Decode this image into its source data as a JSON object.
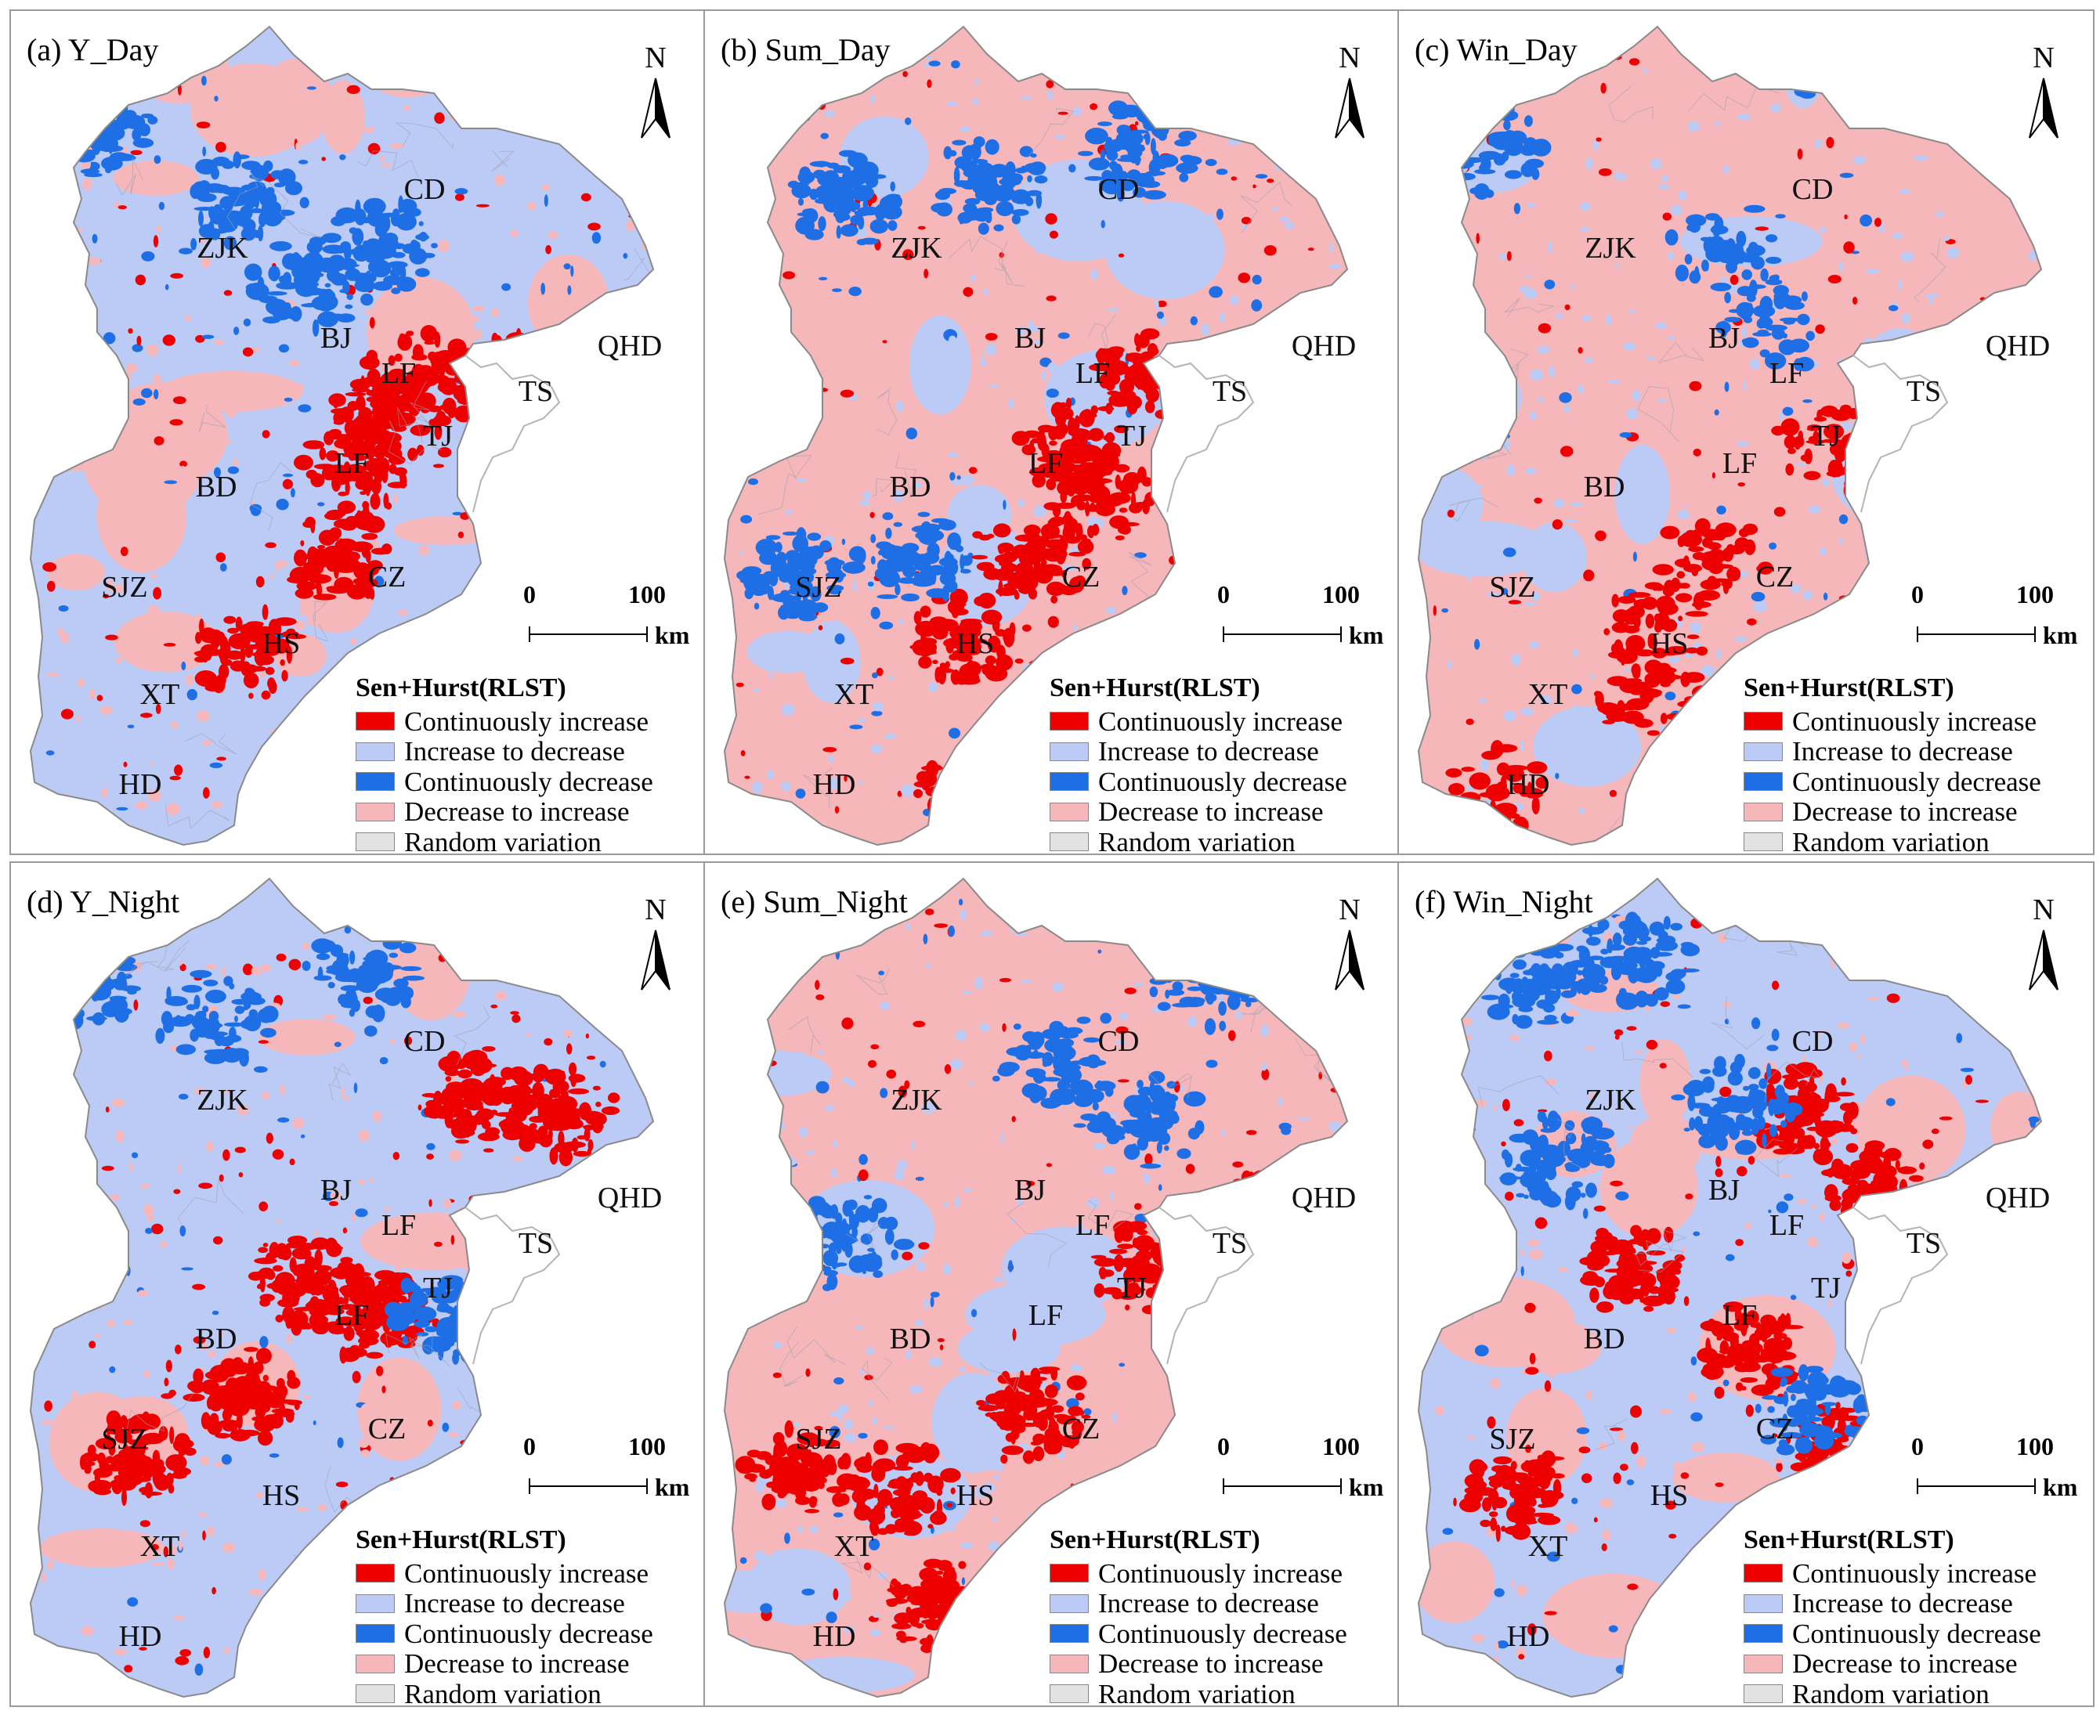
{
  "figure": {
    "colors": {
      "continuously_increase": "#ee0000",
      "increase_to_decrease": "#bccbf5",
      "continuously_decrease": "#1e6fe6",
      "decrease_to_increase": "#f6b7bb",
      "random_variation": "#e2e2e2",
      "coast": "#b4b4b4"
    },
    "north_label": "N",
    "scale_bar": {
      "zero": "0",
      "max": "100",
      "unit": "km"
    },
    "legend": {
      "title": "Sen+Hurst(RLST)",
      "items": [
        {
          "label": "Continuously increase",
          "color": "#ee0000"
        },
        {
          "label": "Increase to decrease",
          "color": "#bccbf5"
        },
        {
          "label": "Continuously decrease",
          "color": "#1e6fe6"
        },
        {
          "label": "Decrease to increase",
          "color": "#f6b7bb"
        },
        {
          "label": "Random variation",
          "color": "#e2e2e2"
        }
      ]
    },
    "panels": [
      {
        "title": "(a) Y_Day",
        "base": "increase_to_decrease",
        "mix": {
          "red": 0.55,
          "blue": 0.55,
          "pink": 0.65
        }
      },
      {
        "title": "(b) Sum_Day",
        "base": "decrease_to_increase",
        "mix": {
          "red": 0.55,
          "blue": 0.6,
          "pink": 0.35
        }
      },
      {
        "title": "(c) Win_Day",
        "base": "decrease_to_increase",
        "mix": {
          "red": 0.35,
          "blue": 0.35,
          "pink": 0.3
        }
      },
      {
        "title": "(d) Y_Night",
        "base": "increase_to_decrease",
        "mix": {
          "red": 0.7,
          "blue": 0.45,
          "pink": 0.35
        }
      },
      {
        "title": "(e) Sum_Night",
        "base": "decrease_to_increase",
        "mix": {
          "red": 0.55,
          "blue": 0.5,
          "pink": 0.3
        }
      },
      {
        "title": "(f) Win_Night",
        "base": "increase_to_decrease",
        "mix": {
          "red": 0.6,
          "blue": 0.55,
          "pink": 0.6
        }
      }
    ],
    "city_labels": [
      "CD",
      "ZJK",
      "BJ",
      "QHD",
      "LF",
      "TS",
      "TJ",
      "LF",
      "BD",
      "SJZ",
      "CZ",
      "HS",
      "XT",
      "HD"
    ]
  }
}
